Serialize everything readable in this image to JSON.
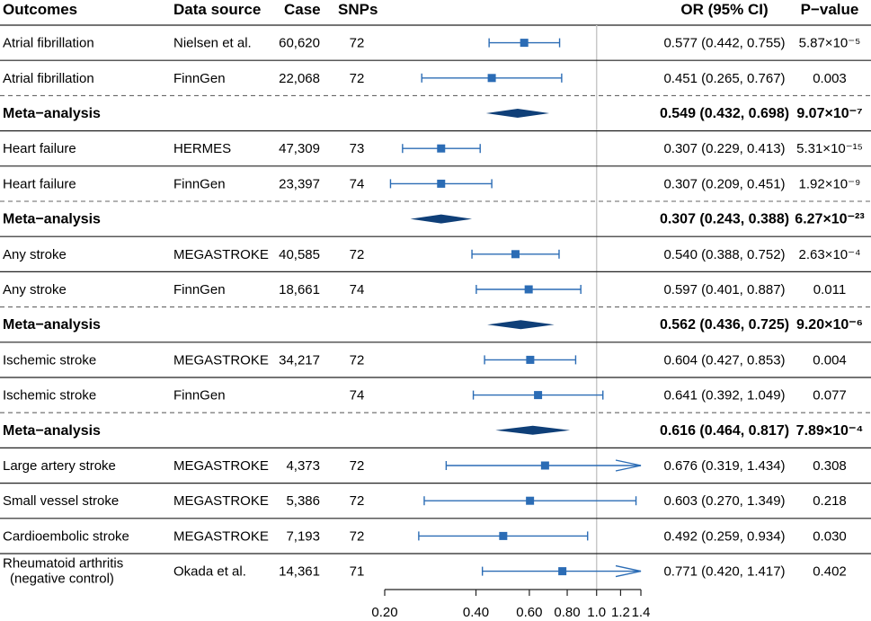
{
  "chart_data": {
    "type": "forest",
    "scale": "log",
    "xaxis": {
      "ticks": [
        0.2,
        0.4,
        0.6,
        0.8,
        1.0,
        1.2,
        1.4
      ],
      "tick_labels": [
        "0.20",
        "0.40",
        "0.60",
        "0.80",
        "1.0",
        "1.2",
        "1.4"
      ],
      "null_line": 1.0,
      "range": [
        0.2,
        1.4
      ]
    },
    "headers": {
      "outcome": "Outcomes",
      "source": "Data source",
      "case": "Case",
      "snps": "SNPs",
      "or": "OR (95% CI)",
      "p": "P−value"
    },
    "rows": [
      {
        "outcome": "Atrial fibrillation",
        "source": "Nielsen et al.",
        "case": "60,620",
        "snps": "72",
        "or": 0.577,
        "lo": 0.442,
        "hi": 0.755,
        "or_text": "0.577 (0.442, 0.755)",
        "p": "5.87×10⁻⁵",
        "meta": false
      },
      {
        "outcome": "Atrial fibrillation",
        "source": "FinnGen",
        "case": "22,068",
        "snps": "72",
        "or": 0.451,
        "lo": 0.265,
        "hi": 0.767,
        "or_text": "0.451 (0.265, 0.767)",
        "p": "0.003",
        "meta": false
      },
      {
        "outcome": "Meta−analysis",
        "source": "",
        "case": "",
        "snps": "",
        "or": 0.549,
        "lo": 0.432,
        "hi": 0.698,
        "or_text": "0.549 (0.432, 0.698)",
        "p": "9.07×10⁻⁷",
        "meta": true
      },
      {
        "outcome": "Heart failure",
        "source": "HERMES",
        "case": "47,309",
        "snps": "73",
        "or": 0.307,
        "lo": 0.229,
        "hi": 0.413,
        "or_text": "0.307 (0.229, 0.413)",
        "p": "5.31×10⁻¹⁵",
        "meta": false
      },
      {
        "outcome": "Heart failure",
        "source": "FinnGen",
        "case": "23,397",
        "snps": "74",
        "or": 0.307,
        "lo": 0.209,
        "hi": 0.451,
        "or_text": "0.307 (0.209, 0.451)",
        "p": "1.92×10⁻⁹",
        "meta": false
      },
      {
        "outcome": "Meta−analysis",
        "source": "",
        "case": "",
        "snps": "",
        "or": 0.307,
        "lo": 0.243,
        "hi": 0.388,
        "or_text": "0.307 (0.243, 0.388)",
        "p": "6.27×10⁻²³",
        "meta": true
      },
      {
        "outcome": "Any stroke",
        "source": "MEGASTROKE",
        "case": "40,585",
        "snps": "72",
        "or": 0.54,
        "lo": 0.388,
        "hi": 0.752,
        "or_text": "0.540 (0.388, 0.752)",
        "p": "2.63×10⁻⁴",
        "meta": false
      },
      {
        "outcome": "Any stroke",
        "source": "FinnGen",
        "case": "18,661",
        "snps": "74",
        "or": 0.597,
        "lo": 0.401,
        "hi": 0.887,
        "or_text": "0.597 (0.401, 0.887)",
        "p": "0.011",
        "meta": false
      },
      {
        "outcome": "Meta−analysis",
        "source": "",
        "case": "",
        "snps": "",
        "or": 0.562,
        "lo": 0.436,
        "hi": 0.725,
        "or_text": "0.562 (0.436, 0.725)",
        "p": "9.20×10⁻⁶",
        "meta": true
      },
      {
        "outcome": "Ischemic stroke",
        "source": "MEGASTROKE",
        "case": "34,217",
        "snps": "72",
        "or": 0.604,
        "lo": 0.427,
        "hi": 0.853,
        "or_text": "0.604 (0.427, 0.853)",
        "p": "0.004",
        "meta": false
      },
      {
        "outcome": "Ischemic stroke",
        "source": "FinnGen",
        "case": "",
        "snps": "74",
        "or": 0.641,
        "lo": 0.392,
        "hi": 1.049,
        "or_text": "0.641 (0.392, 1.049)",
        "p": "0.077",
        "meta": false
      },
      {
        "outcome": "Meta−analysis",
        "source": "",
        "case": "",
        "snps": "",
        "or": 0.616,
        "lo": 0.464,
        "hi": 0.817,
        "or_text": "0.616 (0.464, 0.817)",
        "p": "7.89×10⁻⁴",
        "meta": true
      },
      {
        "outcome": "Large artery stroke",
        "source": "MEGASTROKE",
        "case": "4,373",
        "snps": "72",
        "or": 0.676,
        "lo": 0.319,
        "hi": 1.434,
        "or_text": "0.676 (0.319, 1.434)",
        "p": "0.308",
        "meta": false
      },
      {
        "outcome": "Small vessel stroke",
        "source": "MEGASTROKE",
        "case": "5,386",
        "snps": "72",
        "or": 0.603,
        "lo": 0.27,
        "hi": 1.349,
        "or_text": "0.603 (0.270, 1.349)",
        "p": "0.218",
        "meta": false
      },
      {
        "outcome": "Cardioembolic stroke",
        "source": "MEGASTROKE",
        "case": "7,193",
        "snps": "72",
        "or": 0.492,
        "lo": 0.259,
        "hi": 0.934,
        "or_text": "0.492 (0.259, 0.934)",
        "p": "0.030",
        "meta": false
      },
      {
        "outcome": "Rheumatoid arthritis",
        "outcome2": "(negative control)",
        "source": "Okada et al.",
        "case": "14,361",
        "snps": "71",
        "or": 0.771,
        "lo": 0.42,
        "hi": 1.417,
        "or_text": "0.771 (0.420, 1.417)",
        "p": "0.402",
        "meta": false
      }
    ],
    "colors": {
      "marker": "#2b6cb5",
      "diamond": "#0f3f78",
      "rule": "#222222",
      "dashed": "#666666",
      "null_line": "#c8c8c8"
    }
  }
}
